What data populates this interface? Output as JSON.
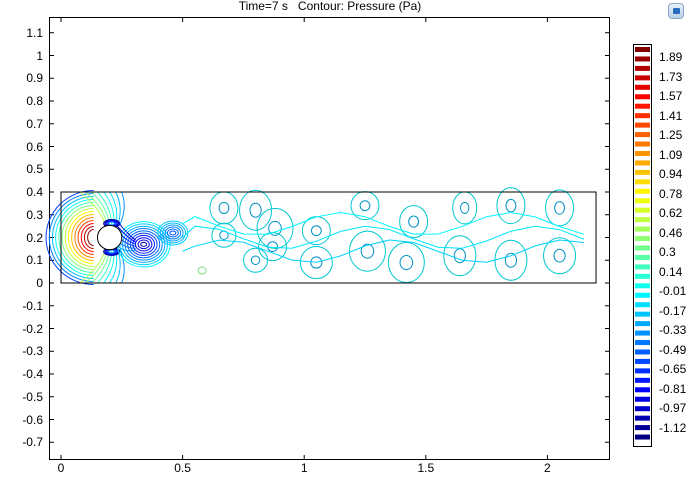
{
  "plot": {
    "title": "Time=7 s   Contour: Pressure (Pa)",
    "y_ticks": [
      "1.1",
      "1",
      "0.9",
      "0.8",
      "0.7",
      "0.6",
      "0.5",
      "0.4",
      "0.3",
      "0.2",
      "0.1",
      "0",
      "-0.1",
      "-0.2",
      "-0.3",
      "-0.4",
      "-0.5",
      "-0.6",
      "-0.7"
    ],
    "x_ticks": [
      "0",
      "0.5",
      "1",
      "1.5",
      "2"
    ],
    "channel": {
      "x_min": 0,
      "x_max": 2.2,
      "y_min": 0,
      "y_max": 0.4
    },
    "cylinder": {
      "cx": 0.2,
      "cy": 0.2,
      "r": 0.05
    }
  },
  "colorbar": {
    "labels": [
      "1.89",
      "1.73",
      "1.57",
      "1.41",
      "1.25",
      "1.09",
      "0.94",
      "0.78",
      "0.62",
      "0.46",
      "0.3",
      "0.14",
      "-0.01",
      "-0.17",
      "-0.33",
      "-0.49",
      "-0.65",
      "-0.81",
      "-0.97",
      "-1.12"
    ],
    "max_color": "#800000",
    "min_color": "#000080"
  },
  "toolbar": {
    "corner_icon": "graphics-window-icon"
  }
}
